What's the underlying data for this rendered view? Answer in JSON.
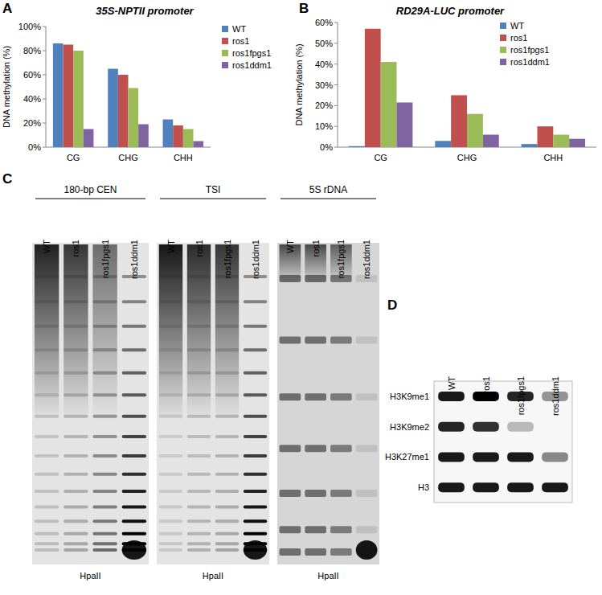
{
  "chart_data": [
    {
      "type": "bar",
      "annotations": [
        "A"
      ],
      "title": "35S-NPTII promoter",
      "y_label": "DNA methylation (%)",
      "categories": [
        "CG",
        "CHG",
        "CHH"
      ],
      "series": [
        {
          "name": "WT",
          "color": "#4f81bd",
          "values": [
            86,
            65,
            23
          ]
        },
        {
          "name": "ros1",
          "color": "#c0504d",
          "values": [
            85,
            60,
            18
          ]
        },
        {
          "name": "ros1fpgs1",
          "color": "#9bbb59",
          "values": [
            80,
            49,
            15
          ]
        },
        {
          "name": "ros1ddm1",
          "color": "#8064a2",
          "values": [
            15,
            19,
            5
          ]
        }
      ],
      "ylim": [
        0,
        100
      ],
      "yticks": [
        {
          "value": 0,
          "label": "0%"
        },
        {
          "value": 20,
          "label": "20%"
        },
        {
          "value": 40,
          "label": "40%"
        },
        {
          "value": 60,
          "label": "60%"
        },
        {
          "value": 80,
          "label": "80%"
        },
        {
          "value": 100,
          "label": "100%"
        }
      ],
      "legend": "upper right",
      "grid": false
    },
    {
      "type": "bar",
      "annotations": [
        "B"
      ],
      "title": "RD29A-LUC promoter",
      "y_label": "DNA methylation (%)",
      "categories": [
        "CG",
        "CHG",
        "CHH"
      ],
      "series": [
        {
          "name": "WT",
          "color": "#4f81bd",
          "values": [
            0.5,
            3,
            1.5
          ]
        },
        {
          "name": "ros1",
          "color": "#c0504d",
          "values": [
            57,
            25,
            10
          ]
        },
        {
          "name": "ros1fpgs1",
          "color": "#9bbb59",
          "values": [
            41,
            16,
            6
          ]
        },
        {
          "name": "ros1ddm1",
          "color": "#8064a2",
          "values": [
            21.5,
            6,
            4
          ]
        }
      ],
      "ylim": [
        0,
        60
      ],
      "yticks": [
        {
          "value": 0,
          "label": "0%"
        },
        {
          "value": 10,
          "label": "10%"
        },
        {
          "value": 20,
          "label": "20%"
        },
        {
          "value": 30,
          "label": "30%"
        },
        {
          "value": 40,
          "label": "40%"
        },
        {
          "value": 50,
          "label": "50%"
        },
        {
          "value": 60,
          "label": "60%"
        }
      ],
      "legend": "upper right",
      "grid": false
    }
  ],
  "gel_panel": {
    "label": "C",
    "blots": [
      {
        "title": "180-bp CEN",
        "enzyme": "HpaII",
        "lanes": [
          "WT",
          "ros1",
          "ros1fpgs1",
          "ros1ddm1"
        ],
        "digestion": [
          0.1,
          0.2,
          0.45,
          1
        ]
      },
      {
        "title": "TSI",
        "enzyme": "HpaII",
        "lanes": [
          "WT",
          "ros1",
          "ros1fpgs1",
          "ros1ddm1"
        ],
        "digestion": [
          0.05,
          0.15,
          0.2,
          1
        ]
      },
      {
        "title": "5S rDNA",
        "enzyme": "HpaII",
        "lanes": [
          "WT",
          "ros1",
          "ros1fpgs1",
          "ros1ddm1"
        ],
        "digestion": [
          0.3,
          0.3,
          0.4,
          1
        ]
      }
    ]
  },
  "western_panel": {
    "label": "D",
    "lanes": [
      "WT",
      "ros1",
      "ros1fpgs1",
      "ros1ddm1"
    ],
    "rows": [
      {
        "name": "H3K9me1",
        "intensities": [
          0.9,
          1,
          0.85,
          0.4
        ]
      },
      {
        "name": "H3K9me2",
        "intensities": [
          0.85,
          0.8,
          0.25,
          0
        ]
      },
      {
        "name": "H3K27me1",
        "intensities": [
          0.9,
          0.9,
          0.9,
          0.45
        ]
      },
      {
        "name": "H3",
        "intensities": [
          0.9,
          0.9,
          0.9,
          0.9
        ]
      }
    ]
  }
}
